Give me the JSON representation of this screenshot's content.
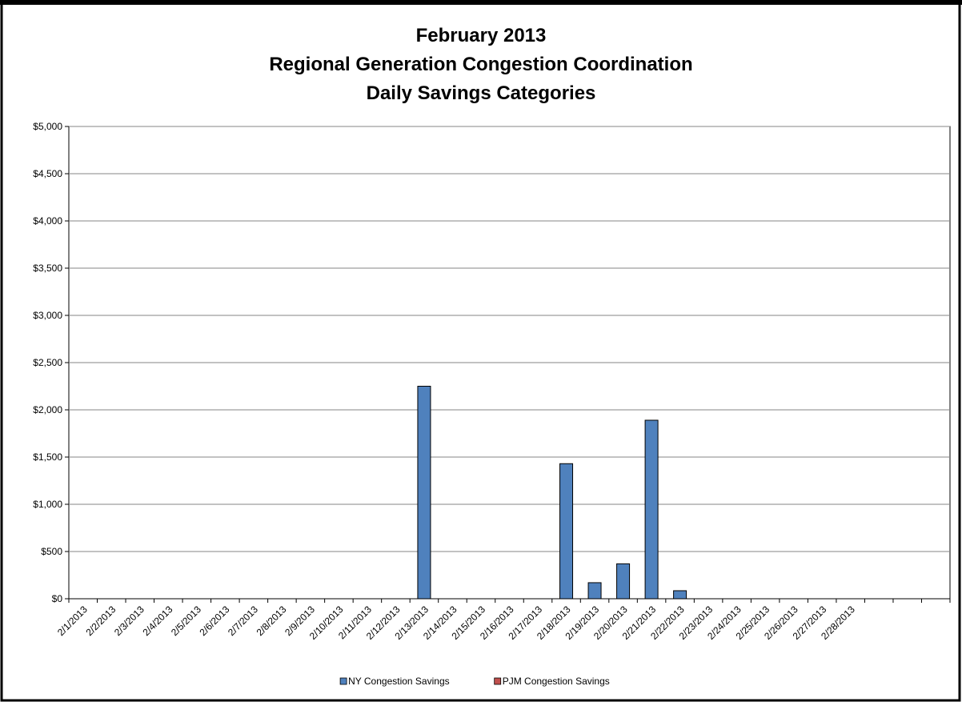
{
  "chart_data": {
    "type": "bar",
    "title": [
      "February 2013",
      "Regional Generation Congestion Coordination",
      "Daily Savings Categories"
    ],
    "categories": [
      "2/1/2013",
      "2/2/2013",
      "2/3/2013",
      "2/4/2013",
      "2/5/2013",
      "2/6/2013",
      "2/7/2013",
      "2/8/2013",
      "2/9/2013",
      "2/10/2013",
      "2/11/2013",
      "2/12/2013",
      "2/13/2013",
      "2/14/2013",
      "2/15/2013",
      "2/16/2013",
      "2/17/2013",
      "2/18/2013",
      "2/19/2013",
      "2/20/2013",
      "2/21/2013",
      "2/22/2013",
      "2/23/2013",
      "2/24/2013",
      "2/25/2013",
      "2/26/2013",
      "2/27/2013",
      "2/28/2013",
      null,
      null,
      null
    ],
    "series": [
      {
        "name": "NY Congestion Savings",
        "color": "#4f81bd",
        "values": [
          0,
          0,
          0,
          0,
          0,
          0,
          0,
          0,
          0,
          0,
          0,
          0,
          2250,
          0,
          0,
          0,
          0,
          1430,
          170,
          370,
          1890,
          85,
          0,
          0,
          0,
          0,
          0,
          0,
          null,
          null,
          null
        ]
      },
      {
        "name": "PJM Congestion Savings",
        "color": "#c0504d",
        "values": [
          0,
          0,
          0,
          0,
          0,
          0,
          0,
          0,
          0,
          0,
          0,
          0,
          0,
          0,
          0,
          0,
          0,
          0,
          0,
          0,
          0,
          0,
          0,
          0,
          0,
          0,
          0,
          0,
          null,
          null,
          null
        ]
      }
    ],
    "ylim": [
      0,
      5000
    ],
    "yticks": [
      {
        "value": 0,
        "label": "$0"
      },
      {
        "value": 500,
        "label": "$500"
      },
      {
        "value": 1000,
        "label": "$1,000"
      },
      {
        "value": 1500,
        "label": "$1,500"
      },
      {
        "value": 2000,
        "label": "$2,000"
      },
      {
        "value": 2500,
        "label": "$2,500"
      },
      {
        "value": 3000,
        "label": "$3,000"
      },
      {
        "value": 3500,
        "label": "$3,500"
      },
      {
        "value": 4000,
        "label": "$4,000"
      },
      {
        "value": 4500,
        "label": "$4,500"
      },
      {
        "value": 5000,
        "label": "$5,000"
      }
    ],
    "grid": true,
    "legend": "bottom"
  }
}
